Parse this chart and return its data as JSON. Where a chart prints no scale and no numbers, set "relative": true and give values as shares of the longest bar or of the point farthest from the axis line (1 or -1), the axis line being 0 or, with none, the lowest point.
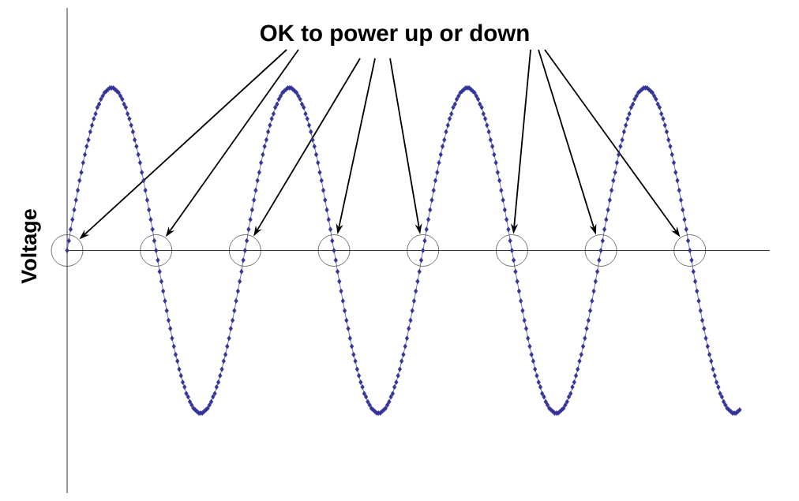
{
  "chart_data": {
    "type": "line",
    "ylabel": "Voltage",
    "annotations": [
      "OK to power up or down"
    ],
    "relative": true,
    "marker": "diamond",
    "line_style": "solid",
    "color": "#333399",
    "categories": [
      null,
      null,
      null,
      null,
      null,
      null,
      null,
      null,
      null,
      null,
      null,
      null,
      null,
      null,
      null,
      null,
      null,
      null,
      null,
      null,
      null,
      null,
      null,
      null,
      null,
      null,
      null,
      null,
      null,
      null,
      null,
      null,
      null,
      null,
      null,
      null,
      null,
      null,
      null,
      null,
      null,
      null,
      null,
      null,
      null,
      null,
      null,
      null,
      null,
      null,
      null,
      null,
      null,
      null,
      null,
      null,
      null,
      null,
      null,
      null,
      null,
      null,
      null,
      null,
      null,
      null,
      null,
      null,
      null,
      null,
      null,
      null,
      null,
      null,
      null,
      null,
      null,
      null,
      null,
      null,
      null,
      null,
      null,
      null,
      null,
      null,
      null,
      null,
      null,
      null,
      null,
      null,
      null,
      null,
      null,
      null,
      null,
      null,
      null,
      null,
      null,
      null,
      null,
      null,
      null,
      null,
      null,
      null,
      null,
      null,
      null,
      null,
      null,
      null,
      null,
      null,
      null,
      null,
      null,
      null,
      null,
      null,
      null,
      null,
      null,
      null,
      null,
      null,
      null,
      null,
      null,
      null,
      null,
      null,
      null,
      null,
      null,
      null,
      null,
      null,
      null,
      null,
      null,
      null,
      null,
      null,
      null,
      null,
      null,
      null,
      null,
      null,
      null,
      null,
      null,
      null,
      null,
      null,
      null,
      null,
      null,
      null,
      null,
      null,
      null,
      null,
      null,
      null,
      null,
      null,
      null,
      null,
      null,
      null,
      null,
      null,
      null,
      null,
      null,
      null,
      null,
      null,
      null,
      null,
      null,
      null,
      null,
      null,
      null,
      null,
      null,
      null,
      null,
      null,
      null,
      null,
      null,
      null,
      null,
      null,
      null,
      null,
      null,
      null,
      null,
      null,
      null,
      null,
      null,
      null,
      null,
      null,
      null,
      null,
      null,
      null,
      null,
      null,
      null,
      null,
      null,
      null,
      null,
      null,
      null,
      null,
      null,
      null,
      null,
      null,
      null,
      null,
      null,
      null,
      null,
      null,
      null,
      null,
      null,
      null,
      null,
      null,
      null,
      null,
      null,
      null,
      null,
      null,
      null,
      null,
      null,
      null,
      null,
      null,
      null,
      null,
      null,
      null,
      null,
      null,
      null,
      null,
      null,
      null,
      null,
      null,
      null,
      null,
      null,
      null,
      null,
      null,
      null,
      null,
      null,
      null,
      null,
      null,
      null,
      null,
      null,
      null,
      null,
      null,
      null,
      null,
      null,
      null,
      null,
      null,
      null,
      null,
      null,
      null,
      null,
      null,
      null,
      null,
      null,
      null,
      null,
      null,
      null,
      null,
      null,
      null,
      null,
      null,
      null,
      null,
      null,
      null,
      null,
      null,
      null,
      null,
      null,
      null,
      null,
      null,
      null,
      null,
      null,
      null,
      null,
      null,
      null,
      null,
      null,
      null,
      null,
      null,
      null,
      null,
      null,
      null,
      null,
      null,
      null,
      null,
      null,
      null,
      null,
      null,
      null,
      null,
      null,
      null,
      null,
      null,
      null,
      null,
      null,
      null,
      null,
      null,
      null,
      null,
      null,
      null,
      null,
      null,
      null,
      null,
      null,
      null,
      null,
      null,
      null,
      null,
      null,
      null,
      null,
      null,
      null,
      null,
      null,
      null,
      null
    ],
    "values": [
      0,
      0.06,
      0.13,
      0.19,
      0.25,
      0.31,
      0.37,
      0.43,
      0.48,
      0.54,
      0.59,
      0.64,
      0.68,
      0.73,
      0.77,
      0.81,
      0.84,
      0.88,
      0.9,
      0.93,
      0.95,
      0.97,
      0.98,
      0.99,
      1,
      1,
      1,
      0.99,
      0.98,
      0.97,
      0.95,
      0.93,
      0.9,
      0.88,
      0.84,
      0.81,
      0.77,
      0.73,
      0.68,
      0.64,
      0.59,
      0.54,
      0.48,
      0.43,
      0.37,
      0.31,
      0.25,
      0.19,
      0.13,
      0.06,
      0,
      -0.06,
      -0.13,
      -0.19,
      -0.25,
      -0.31,
      -0.37,
      -0.43,
      -0.48,
      -0.54,
      -0.59,
      -0.64,
      -0.68,
      -0.73,
      -0.77,
      -0.81,
      -0.84,
      -0.88,
      -0.9,
      -0.93,
      -0.95,
      -0.97,
      -0.98,
      -0.99,
      -1,
      -1,
      -1,
      -0.99,
      -0.98,
      -0.97,
      -0.95,
      -0.93,
      -0.9,
      -0.88,
      -0.84,
      -0.81,
      -0.77,
      -0.73,
      -0.68,
      -0.64,
      -0.59,
      -0.54,
      -0.48,
      -0.43,
      -0.37,
      -0.31,
      -0.25,
      -0.19,
      -0.13,
      -0.06,
      0,
      0.06,
      0.13,
      0.19,
      0.25,
      0.31,
      0.37,
      0.43,
      0.48,
      0.54,
      0.59,
      0.64,
      0.68,
      0.73,
      0.77,
      0.81,
      0.84,
      0.88,
      0.9,
      0.93,
      0.95,
      0.97,
      0.98,
      0.99,
      1,
      1,
      1,
      0.99,
      0.98,
      0.97,
      0.95,
      0.93,
      0.9,
      0.88,
      0.84,
      0.81,
      0.77,
      0.73,
      0.68,
      0.64,
      0.59,
      0.54,
      0.48,
      0.43,
      0.37,
      0.31,
      0.25,
      0.19,
      0.13,
      0.06,
      0,
      -0.06,
      -0.13,
      -0.19,
      -0.25,
      -0.31,
      -0.37,
      -0.43,
      -0.48,
      -0.54,
      -0.59,
      -0.64,
      -0.68,
      -0.73,
      -0.77,
      -0.81,
      -0.84,
      -0.88,
      -0.9,
      -0.93,
      -0.95,
      -0.97,
      -0.98,
      -0.99,
      -1,
      -1,
      -1,
      -0.99,
      -0.98,
      -0.97,
      -0.95,
      -0.93,
      -0.9,
      -0.88,
      -0.84,
      -0.81,
      -0.77,
      -0.73,
      -0.68,
      -0.64,
      -0.59,
      -0.54,
      -0.48,
      -0.43,
      -0.37,
      -0.31,
      -0.25,
      -0.19,
      -0.13,
      -0.06,
      0,
      0.06,
      0.13,
      0.19,
      0.25,
      0.31,
      0.37,
      0.43,
      0.48,
      0.54,
      0.59,
      0.64,
      0.68,
      0.73,
      0.77,
      0.81,
      0.84,
      0.88,
      0.9,
      0.93,
      0.95,
      0.97,
      0.98,
      0.99,
      1,
      1,
      1,
      0.99,
      0.98,
      0.97,
      0.95,
      0.93,
      0.9,
      0.88,
      0.84,
      0.81,
      0.77,
      0.73,
      0.68,
      0.64,
      0.59,
      0.54,
      0.48,
      0.43,
      0.37,
      0.31,
      0.25,
      0.19,
      0.13,
      0.06,
      0,
      -0.06,
      -0.13,
      -0.19,
      -0.25,
      -0.31,
      -0.37,
      -0.43,
      -0.48,
      -0.54,
      -0.59,
      -0.64,
      -0.68,
      -0.73,
      -0.77,
      -0.81,
      -0.84,
      -0.88,
      -0.9,
      -0.93,
      -0.95,
      -0.97,
      -0.98,
      -0.99,
      -1,
      -1,
      -1,
      -0.99,
      -0.98,
      -0.97,
      -0.95,
      -0.93,
      -0.9,
      -0.88,
      -0.84,
      -0.81,
      -0.77,
      -0.73,
      -0.68,
      -0.64,
      -0.59,
      -0.54,
      -0.48,
      -0.43,
      -0.37,
      -0.31,
      -0.25,
      -0.19,
      -0.13,
      -0.06,
      0,
      0.06,
      0.13,
      0.19,
      0.25,
      0.31,
      0.37,
      0.43,
      0.48,
      0.54,
      0.59,
      0.64,
      0.68,
      0.73,
      0.77,
      0.81,
      0.84,
      0.88,
      0.9,
      0.93,
      0.95,
      0.97,
      0.98,
      0.99,
      1,
      1,
      1,
      0.99,
      0.98,
      0.97,
      0.95,
      0.93,
      0.9,
      0.88,
      0.84,
      0.81,
      0.77,
      0.73,
      0.68,
      0.64,
      0.59,
      0.54,
      0.48,
      0.43,
      0.37,
      0.31,
      0.25,
      0.19,
      0.13,
      0.06,
      0,
      -0.06,
      -0.13,
      -0.19,
      -0.25,
      -0.31,
      -0.37,
      -0.43,
      -0.48,
      -0.54,
      -0.59,
      -0.64,
      -0.68,
      -0.73,
      -0.77,
      -0.81,
      -0.84,
      -0.88,
      -0.9,
      -0.93,
      -0.95,
      -0.97,
      -0.98,
      -0.99,
      -1,
      -1,
      -1,
      -0.99,
      -0.98
    ]
  }
}
